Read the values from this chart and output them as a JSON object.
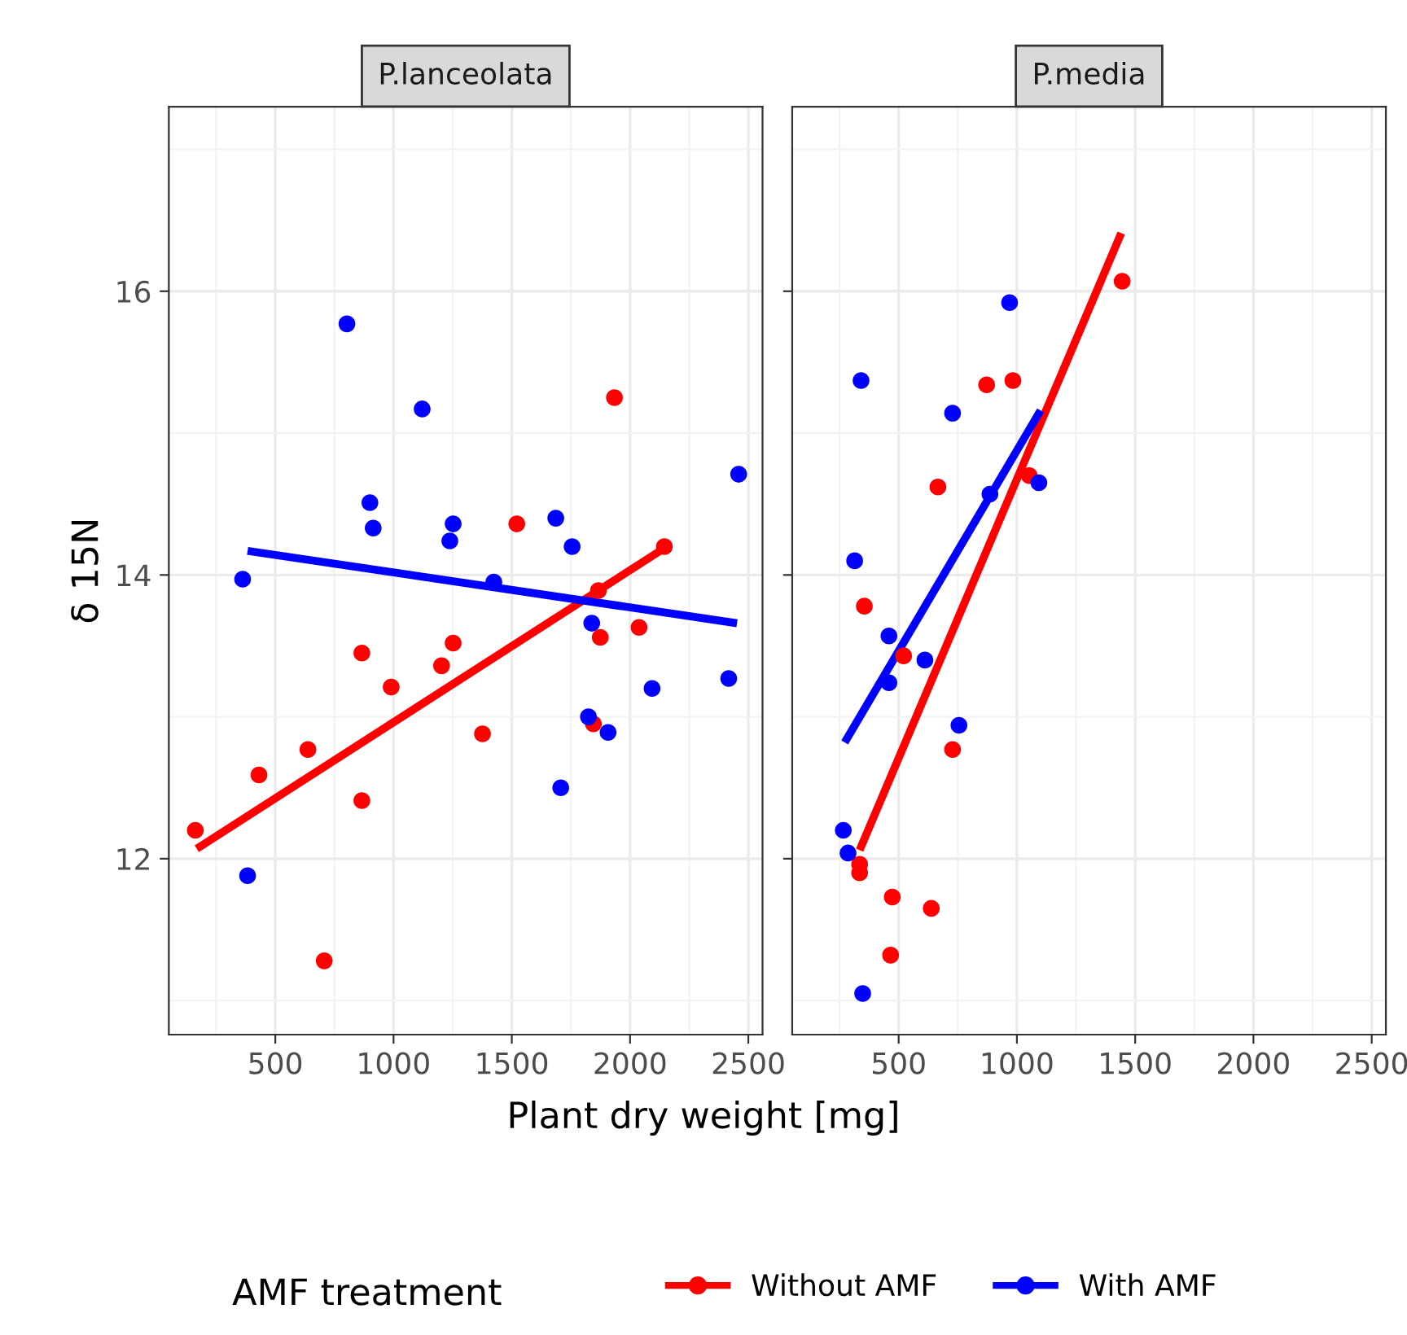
{
  "chart_data": [
    {
      "type": "scatter",
      "title": "P.lanceolata",
      "xlabel": "Plant dry weight [mg]",
      "ylabel": "δ 15N",
      "legend_title": "AMF treatment",
      "legend": "bottom",
      "grid": true,
      "marker": "circle",
      "xlim": [
        50,
        2560
      ],
      "ylim": [
        10.76,
        17.3
      ],
      "xticks": [
        {
          "value": 250,
          "label": null
        },
        500,
        {
          "value": 750,
          "label": null
        },
        1000,
        {
          "value": 1250,
          "label": null
        },
        1500,
        {
          "value": 1750,
          "label": null
        },
        2000,
        {
          "value": 2250,
          "label": null
        },
        2500
      ],
      "yticks": [
        {
          "value": 11,
          "label": null
        },
        12,
        {
          "value": 13,
          "label": null
        },
        14,
        {
          "value": 15,
          "label": null
        },
        16,
        {
          "value": 17,
          "label": null
        }
      ],
      "series": [
        {
          "name": "Without AMF",
          "color": "#ff0000",
          "x": [
            162,
            431,
            638,
            866,
            866,
            990,
            1203,
            1252,
            1376,
            707,
            1521,
            1934,
            2145,
            1866,
            1874,
            2038,
            1845
          ],
          "values": [
            12.2,
            12.59,
            12.77,
            13.45,
            12.41,
            13.21,
            13.36,
            13.52,
            12.88,
            11.28,
            14.36,
            15.25,
            14.2,
            13.89,
            13.56,
            13.63,
            12.95
          ]
        },
        {
          "name": "With AMF",
          "color": "#0000ff",
          "x": [
            803,
            1121,
            900,
            914,
            1252,
            1238,
            1686,
            1755,
            2459,
            1424,
            362,
            383,
            1838,
            1824,
            1907,
            1707,
            2093,
            2417
          ],
          "values": [
            15.77,
            15.17,
            14.51,
            14.33,
            14.36,
            14.24,
            14.4,
            14.2,
            14.71,
            13.95,
            13.97,
            11.88,
            13.66,
            13.0,
            12.89,
            12.5,
            13.2,
            13.27
          ]
        },
        {
          "type": "line",
          "color": "#ff0000",
          "marker": "none",
          "x": [
            168,
            2155
          ],
          "values": [
            12.07,
            14.2
          ]
        },
        {
          "type": "line",
          "color": "#0000ff",
          "marker": "none",
          "x": [
            383,
            2452
          ],
          "values": [
            14.17,
            13.66
          ]
        }
      ]
    },
    {
      "type": "scatter",
      "title": "P.media",
      "grid": true,
      "marker": "circle",
      "tick_labels": "x",
      "xlim": [
        50,
        2560
      ],
      "ylim": [
        10.76,
        17.3
      ],
      "xticks": [
        {
          "value": 250,
          "label": null
        },
        500,
        {
          "value": 750,
          "label": null
        },
        1000,
        {
          "value": 1250,
          "label": null
        },
        1500,
        {
          "value": 1750,
          "label": null
        },
        2000,
        {
          "value": 2250,
          "label": null
        },
        2500
      ],
      "yticks": [
        {
          "value": 11,
          "label": null
        },
        12,
        {
          "value": 13,
          "label": null
        },
        14,
        {
          "value": 15,
          "label": null
        },
        16,
        {
          "value": 17,
          "label": null
        }
      ],
      "series": [
        {
          "color": "#ff0000",
          "x": [
            1445,
            872,
            983,
            666,
            1052,
            355,
            521,
            728,
            335,
            335,
            473,
            638,
            466
          ],
          "values": [
            16.07,
            15.34,
            15.37,
            14.62,
            14.7,
            13.78,
            13.43,
            12.77,
            11.96,
            11.9,
            11.73,
            11.65,
            11.32
          ]
        },
        {
          "color": "#0000ff",
          "x": [
            341,
            969,
            728,
            1093,
            886,
            314,
            459,
            459,
            611,
            755,
            266,
            286,
            348
          ],
          "values": [
            15.37,
            15.92,
            15.14,
            14.65,
            14.57,
            14.1,
            13.57,
            13.24,
            13.4,
            12.94,
            12.2,
            12.04,
            11.05
          ]
        },
        {
          "type": "line",
          "color": "#ff0000",
          "marker": "none",
          "x": [
            335,
            1441
          ],
          "values": [
            12.06,
            16.41
          ]
        },
        {
          "type": "line",
          "color": "#0000ff",
          "marker": "none",
          "x": [
            272,
            1100
          ],
          "values": [
            12.82,
            15.16
          ]
        }
      ]
    }
  ]
}
